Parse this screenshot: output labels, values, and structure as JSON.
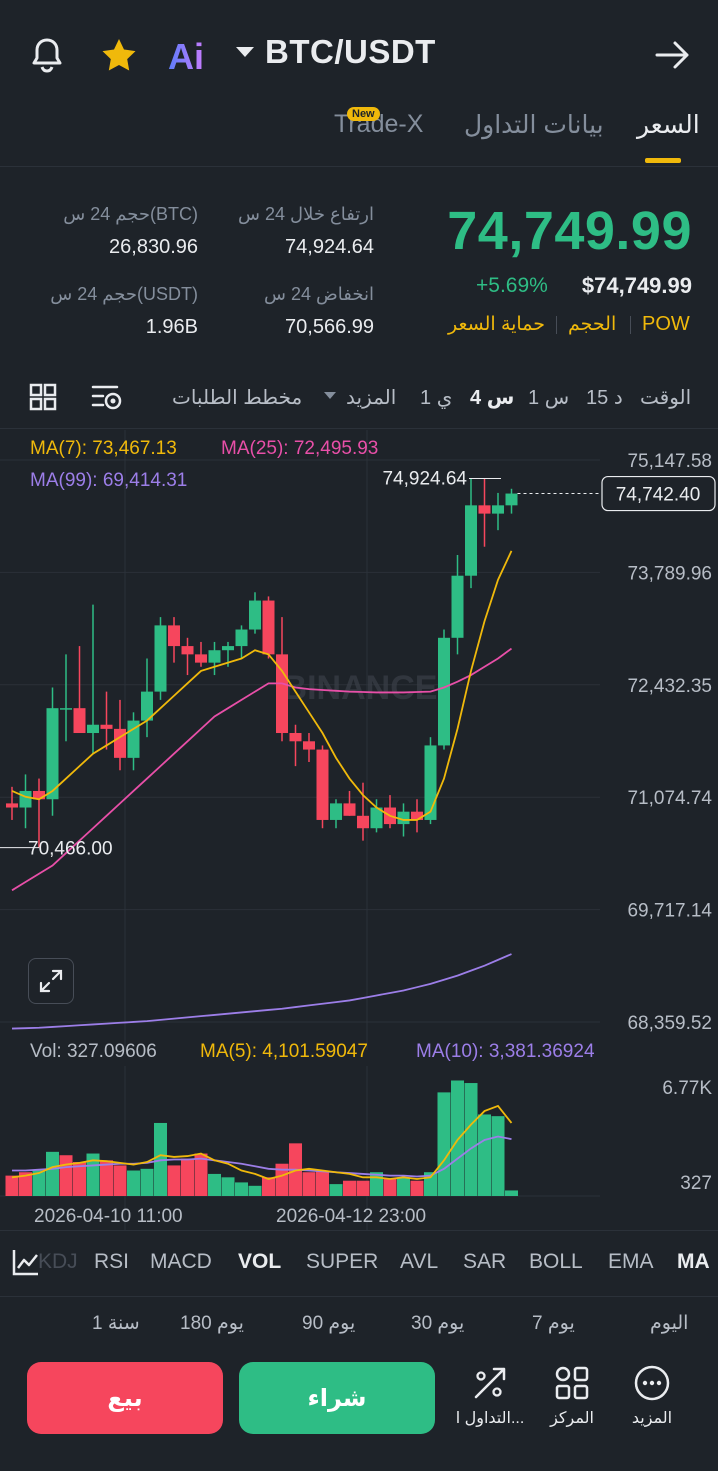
{
  "header": {
    "pair": "BTC/USDT",
    "icons": [
      "bell-icon",
      "star-icon",
      "ai-icon",
      "caret-down-icon",
      "share-arrow-icon"
    ],
    "ai_label": "Ai"
  },
  "tabs": [
    {
      "label": "السعر",
      "active": true
    },
    {
      "label": "بيانات التداول",
      "active": false
    },
    {
      "label": "Trade-X",
      "active": false,
      "badge": "New"
    }
  ],
  "ticker": {
    "last_price": "74,749.99",
    "change_percent": "+5.69%",
    "usd_price": "$74,749.99",
    "tags": [
      "POW",
      "الحجم",
      "حماية السعر"
    ],
    "high_label": "ارتفاع خلال 24 س",
    "high_value": "74,924.64",
    "low_label": "انخفاض 24 س",
    "low_value": "70,566.99",
    "vol_btc_label": "حجم 24 س(BTC)",
    "vol_btc_value": "26,830.96",
    "vol_usdt_label": "حجم 24 س(USDT)",
    "vol_usdt_value": "1.96B"
  },
  "timeframes": {
    "time_label": "الوقت",
    "items": [
      "15 د",
      "1 س",
      "4 س",
      "1 ي"
    ],
    "active": "4 س",
    "more_label": "المزيد",
    "depth_label": "مخطط الطلبات",
    "icons": [
      "chart-settings-icon",
      "grid-layout-icon"
    ]
  },
  "chart_data": {
    "type": "candlestick",
    "ma_labels": {
      "ma7": "MA(7): 73,467.13",
      "ma25": "MA(25): 72,495.93",
      "ma99": "MA(99): 69,414.31"
    },
    "y_ticks": [
      "75,147.58",
      "73,789.96",
      "72,432.35",
      "71,074.74",
      "69,717.14",
      "68,359.52"
    ],
    "y_tick_values": [
      75147.58,
      73789.96,
      72432.35,
      71074.74,
      69717.14,
      68359.52
    ],
    "current_price_label": "74,742.40",
    "current_price": 74742.4,
    "high_marker": "74,924.64",
    "high_marker_value": 74924.64,
    "low_marker": "70,466.00",
    "low_marker_value": 70466.0,
    "watermark": "BINANCE",
    "x_labels": [
      "2026-04-10 11:00",
      "2026-04-12 23:00"
    ],
    "candles": [
      {
        "o": 71000,
        "h": 71200,
        "l": 70800,
        "c": 70950
      },
      {
        "o": 70950,
        "h": 71350,
        "l": 70700,
        "c": 71150
      },
      {
        "o": 71150,
        "h": 71300,
        "l": 70466,
        "c": 71050
      },
      {
        "o": 71050,
        "h": 72400,
        "l": 70850,
        "c": 72150
      },
      {
        "o": 72150,
        "h": 72800,
        "l": 71750,
        "c": 72150
      },
      {
        "o": 72150,
        "h": 72900,
        "l": 71850,
        "c": 71850
      },
      {
        "o": 71850,
        "h": 73400,
        "l": 71600,
        "c": 71950
      },
      {
        "o": 71950,
        "h": 72350,
        "l": 71650,
        "c": 71900
      },
      {
        "o": 71900,
        "h": 72250,
        "l": 71400,
        "c": 71550
      },
      {
        "o": 71550,
        "h": 72100,
        "l": 71400,
        "c": 72000
      },
      {
        "o": 72000,
        "h": 72750,
        "l": 71800,
        "c": 72350
      },
      {
        "o": 72350,
        "h": 73250,
        "l": 72250,
        "c": 73150
      },
      {
        "o": 73150,
        "h": 73250,
        "l": 72700,
        "c": 72900
      },
      {
        "o": 72900,
        "h": 73000,
        "l": 72550,
        "c": 72800
      },
      {
        "o": 72800,
        "h": 72950,
        "l": 72650,
        "c": 72700
      },
      {
        "o": 72700,
        "h": 72950,
        "l": 72550,
        "c": 72850
      },
      {
        "o": 72850,
        "h": 72950,
        "l": 72650,
        "c": 72900
      },
      {
        "o": 72900,
        "h": 73150,
        "l": 72750,
        "c": 73100
      },
      {
        "o": 73100,
        "h": 73550,
        "l": 73050,
        "c": 73450
      },
      {
        "o": 73450,
        "h": 73500,
        "l": 72750,
        "c": 72800
      },
      {
        "o": 72800,
        "h": 73250,
        "l": 71750,
        "c": 71850
      },
      {
        "o": 71850,
        "h": 71950,
        "l": 71450,
        "c": 71750
      },
      {
        "o": 71750,
        "h": 71850,
        "l": 71500,
        "c": 71650
      },
      {
        "o": 71650,
        "h": 71700,
        "l": 70700,
        "c": 70800
      },
      {
        "o": 70800,
        "h": 71050,
        "l": 70700,
        "c": 71000
      },
      {
        "o": 71000,
        "h": 71150,
        "l": 70850,
        "c": 70850
      },
      {
        "o": 70850,
        "h": 71250,
        "l": 70550,
        "c": 70700
      },
      {
        "o": 70700,
        "h": 71050,
        "l": 70650,
        "c": 70950
      },
      {
        "o": 70950,
        "h": 71100,
        "l": 70700,
        "c": 70750
      },
      {
        "o": 70750,
        "h": 71000,
        "l": 70600,
        "c": 70900
      },
      {
        "o": 70900,
        "h": 71050,
        "l": 70650,
        "c": 70800
      },
      {
        "o": 70800,
        "h": 71800,
        "l": 70750,
        "c": 71700
      },
      {
        "o": 71700,
        "h": 73100,
        "l": 71650,
        "c": 73000
      },
      {
        "o": 73000,
        "h": 74000,
        "l": 72800,
        "c": 73750
      },
      {
        "o": 73750,
        "h": 74924.64,
        "l": 73600,
        "c": 74600
      },
      {
        "o": 74600,
        "h": 74924.64,
        "l": 74100,
        "c": 74500
      },
      {
        "o": 74500,
        "h": 74750,
        "l": 74300,
        "c": 74600
      },
      {
        "o": 74600,
        "h": 74800,
        "l": 74500,
        "c": 74742.4
      }
    ],
    "ma7": [
      71150,
      71080,
      71050,
      71150,
      71300,
      71450,
      71600,
      71700,
      71800,
      71900,
      72000,
      72150,
      72300,
      72450,
      72600,
      72650,
      72700,
      72750,
      72850,
      72800,
      72600,
      72350,
      72100,
      71850,
      71550,
      71300,
      71100,
      70950,
      70850,
      70800,
      70800,
      70900,
      71300,
      71900,
      72600,
      73200,
      73700,
      74050
    ],
    "ma25": [
      69950,
      70050,
      70150,
      70250,
      70400,
      70550,
      70700,
      70850,
      71000,
      71150,
      71300,
      71450,
      71600,
      71750,
      71900,
      72050,
      72150,
      72250,
      72350,
      72450,
      72450,
      72400,
      72380,
      72370,
      72360,
      72350,
      72345,
      72340,
      72340,
      72340,
      72345,
      72350,
      72400,
      72470,
      72550,
      72650,
      72750,
      72870
    ],
    "ma99": [
      68280,
      68285,
      68290,
      68300,
      68310,
      68320,
      68330,
      68340,
      68350,
      68360,
      68370,
      68385,
      68400,
      68415,
      68430,
      68445,
      68460,
      68475,
      68490,
      68505,
      68520,
      68540,
      68560,
      68580,
      68600,
      68620,
      68650,
      68680,
      68710,
      68740,
      68780,
      68820,
      68870,
      68920,
      68980,
      69040,
      69110,
      69180
    ],
    "volume": {
      "labels": {
        "vol": "Vol: 327.09606",
        "ma5": "MA(5): 4,101.59047",
        "ma10": "MA(10): 3,381.36924"
      },
      "y_ticks": [
        "6.77K",
        "327"
      ],
      "max": 6770,
      "bars": [
        1200,
        1400,
        1500,
        2600,
        2400,
        2000,
        2500,
        2100,
        1800,
        1500,
        1600,
        4300,
        1800,
        2200,
        2500,
        1300,
        1100,
        800,
        600,
        1100,
        1900,
        3100,
        1400,
        1500,
        700,
        900,
        900,
        1400,
        1000,
        1100,
        900,
        1400,
        6100,
        6800,
        6650,
        4800,
        4700,
        327
      ],
      "bars_up": [
        false,
        false,
        true,
        true,
        false,
        false,
        true,
        false,
        false,
        true,
        true,
        true,
        false,
        false,
        false,
        true,
        true,
        true,
        true,
        false,
        false,
        false,
        false,
        false,
        true,
        false,
        false,
        true,
        false,
        true,
        false,
        true,
        true,
        true,
        true,
        true,
        true,
        true
      ],
      "ma5": [
        1100,
        1200,
        1350,
        1700,
        1850,
        1950,
        2100,
        2050,
        1950,
        1850,
        2000,
        2400,
        2300,
        2350,
        2500,
        2100,
        1900,
        1500,
        1300,
        1000,
        1200,
        1500,
        1600,
        1500,
        1400,
        1300,
        1100,
        1100,
        1000,
        1100,
        1000,
        1100,
        2100,
        3300,
        4200,
        5000,
        5300,
        4300
      ],
      "ma10": [
        1500,
        1500,
        1550,
        1600,
        1700,
        1750,
        1800,
        1850,
        1900,
        1900,
        1950,
        2100,
        2150,
        2150,
        2200,
        2100,
        2000,
        1900,
        1750,
        1600,
        1550,
        1550,
        1500,
        1450,
        1400,
        1350,
        1300,
        1250,
        1200,
        1200,
        1150,
        1200,
        1600,
        2200,
        2800,
        3300,
        3500,
        3350
      ]
    }
  },
  "indicators": {
    "items": [
      "KDJ",
      "RSI",
      "MACD",
      "VOL",
      "SUPER",
      "AVL",
      "SAR",
      "BOLL",
      "EMA",
      "MA"
    ],
    "active": [
      "VOL",
      "MA"
    ],
    "icons": [
      "indicator-chart-icon"
    ]
  },
  "performance": {
    "labels": [
      "اليوم",
      "7 يوم",
      "30 يوم",
      "90 يوم",
      "180 يوم",
      "1 سنة"
    ]
  },
  "bottom_bar": {
    "more_label": "المزيد",
    "center_label": "المركز",
    "trading_label": "التداول ا...",
    "buy_label": "شراء",
    "sell_label": "بيع",
    "colors": {
      "buy": "#2ebd85",
      "sell": "#f6465d",
      "accent": "#f0b90b",
      "bg": "#1e2329"
    },
    "icons": [
      "more-dots-icon",
      "center-grid-icon",
      "trading-bot-icon"
    ]
  }
}
